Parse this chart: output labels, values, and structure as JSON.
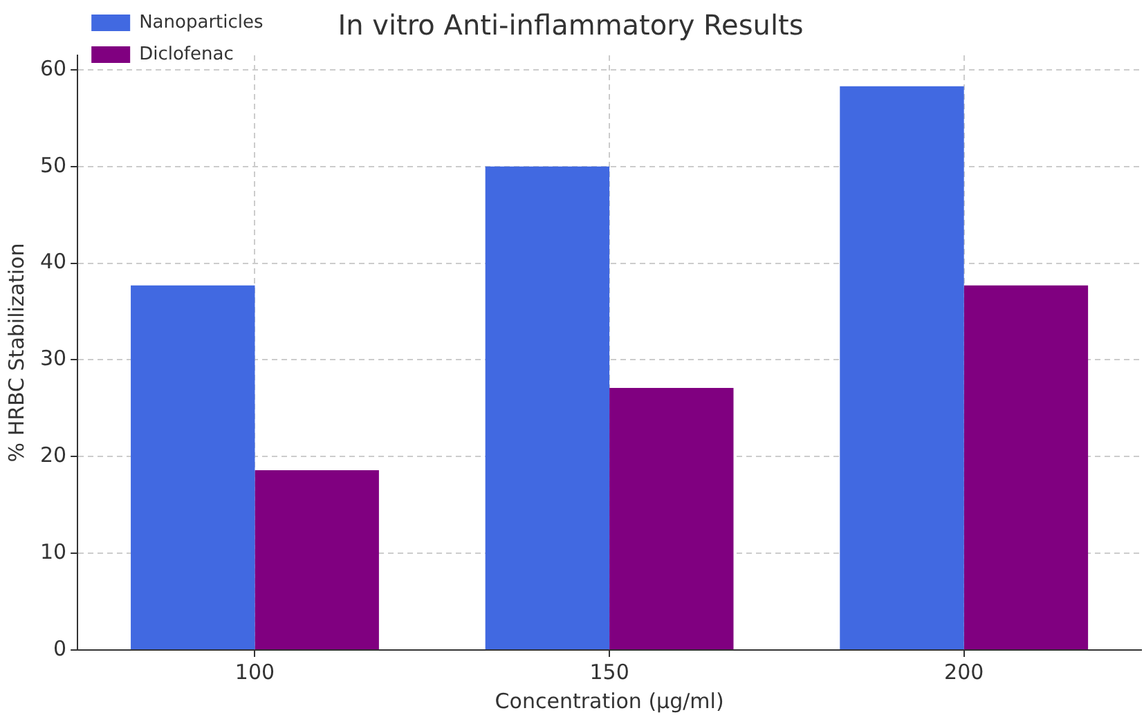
{
  "chart_data": {
    "type": "bar",
    "title": "In vitro Anti-inflammatory Results",
    "xlabel": "Concentration (µg/ml)",
    "ylabel": "% HRBC Stabilization",
    "categories": [
      "100",
      "150",
      "200"
    ],
    "series": [
      {
        "name": "Nanoparticles",
        "color": "#4169e1",
        "values": [
          37.7,
          50,
          58.3
        ]
      },
      {
        "name": "Diclofenac",
        "color": "#800080",
        "values": [
          18.6,
          27.1,
          37.7
        ]
      }
    ],
    "ylim": [
      0,
      61.5
    ],
    "yticks": [
      0,
      10,
      20,
      30,
      40,
      50,
      60
    ],
    "grid": true,
    "legend": "top left"
  }
}
